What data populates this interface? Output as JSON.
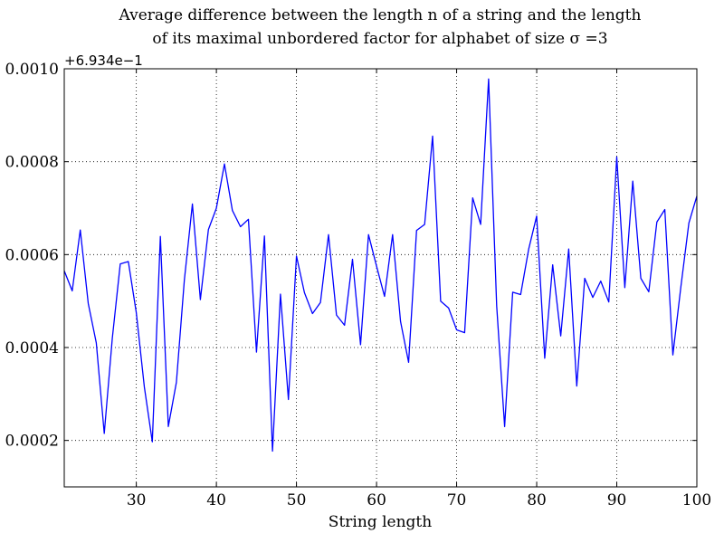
{
  "chart_data": {
    "type": "line",
    "title_line1": "Average difference between the length n of a string and the length",
    "title_line2": "of its maximal unbordered factor for alphabet of size σ =3",
    "xlabel": "String length",
    "ylabel": "",
    "y_offset_label": "+6.934e−1",
    "xlim": [
      21,
      100
    ],
    "ylim": [
      0.0001,
      0.001
    ],
    "x_ticks": [
      30,
      40,
      50,
      60,
      70,
      80,
      90,
      100
    ],
    "y_ticks": [
      0.0002,
      0.0004,
      0.0006,
      0.0008,
      0.001
    ],
    "y_tick_labels": [
      "0.0002",
      "0.0004",
      "0.0006",
      "0.0008",
      "0.0010"
    ],
    "grid": true,
    "line_color": "#0000ff",
    "series": [
      {
        "x": [
          21,
          22,
          23,
          24,
          25,
          26,
          27,
          28,
          29,
          30,
          31,
          32,
          33,
          34,
          35,
          36,
          37,
          38,
          39,
          40,
          41,
          42,
          43,
          44,
          45,
          46,
          47,
          48,
          49,
          50,
          51,
          52,
          53,
          54,
          55,
          56,
          57,
          58,
          59,
          60,
          61,
          62,
          63,
          64,
          65,
          66,
          67,
          68,
          69,
          70,
          71,
          72,
          73,
          74,
          75,
          76,
          77,
          78,
          79,
          80,
          81,
          82,
          83,
          84,
          85,
          86,
          87,
          88,
          89,
          90,
          91,
          92,
          93,
          94,
          95,
          96,
          97,
          98,
          99,
          100
        ],
        "values": [
          0.000565,
          0.000522,
          0.000653,
          0.000495,
          0.00041,
          0.000215,
          0.00042,
          0.00058,
          0.000585,
          0.000475,
          0.000315,
          0.000197,
          0.000639,
          0.00023,
          0.000325,
          0.000545,
          0.000709,
          0.000503,
          0.000654,
          0.0007,
          0.000795,
          0.000695,
          0.00066,
          0.000676,
          0.00039,
          0.00064,
          0.000177,
          0.000515,
          0.000288,
          0.000597,
          0.000518,
          0.000473,
          0.000497,
          0.000643,
          0.00047,
          0.000448,
          0.00059,
          0.000406,
          0.000643,
          0.000575,
          0.00051,
          0.000643,
          0.000456,
          0.000368,
          0.000652,
          0.000665,
          0.000855,
          0.0005,
          0.000485,
          0.000438,
          0.000432,
          0.000722,
          0.000665,
          0.000978,
          0.00049,
          0.00023,
          0.000519,
          0.000514,
          0.000612,
          0.000683,
          0.000377,
          0.000578,
          0.000425,
          0.000612,
          0.000317,
          0.000549,
          0.000508,
          0.000543,
          0.000498,
          0.00081,
          0.000529,
          0.000758,
          0.000549,
          0.00052,
          0.00067,
          0.000697,
          0.000384,
          0.00053,
          0.000668,
          0.000726
        ]
      }
    ]
  }
}
